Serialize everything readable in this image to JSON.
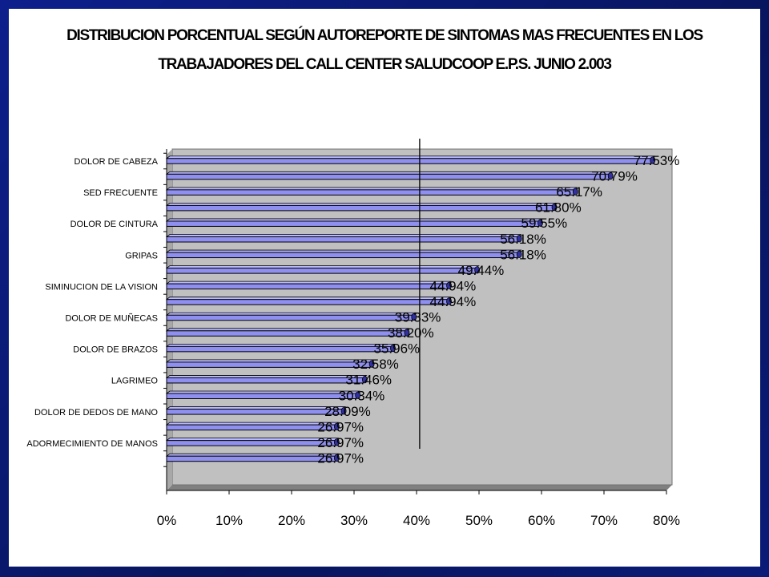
{
  "chart_data": {
    "type": "bar",
    "orientation": "horizontal",
    "title_line1": "DISTRIBUCION PORCENTUAL SEGÚN AUTOREPORTE DE SINTOMAS MAS FRECUENTES EN LOS",
    "title_line2": "TRABAJADORES DEL CALL CENTER SALUDCOOP E.P.S. JUNIO 2.003",
    "xlim": [
      0,
      80
    ],
    "x_ticks": [
      "0%",
      "10%",
      "20%",
      "30%",
      "40%",
      "50%",
      "60%",
      "70%",
      "80%"
    ],
    "category_labels": [
      "DOLOR DE CABEZA",
      "SED FRECUENTE",
      "DOLOR DE CINTURA",
      "GRIPAS",
      "SIMINUCION DE LA VISION",
      "DOLOR DE MUÑECAS",
      "DOLOR DE BRAZOS",
      "LAGRIMEO",
      "DOLOR DE DEDOS DE MANO",
      "ADORMECIMIENTO DE MANOS"
    ],
    "values": [
      77.53,
      70.79,
      65.17,
      61.8,
      59.55,
      56.18,
      56.18,
      49.44,
      44.94,
      44.94,
      39.33,
      38.2,
      35.96,
      32.58,
      31.46,
      30.34,
      28.09,
      26.97,
      26.97,
      26.97
    ],
    "data_labels": [
      "77.53%",
      "70.79%",
      "65.17%",
      "61.80%",
      "59.55%",
      "56.18%",
      "56.18%",
      "49.44%",
      "44.94%",
      "44.94%",
      "39.33%",
      "38.20%",
      "35.96%",
      "32.58%",
      "31.46%",
      "30.34%",
      "28.09%",
      "26.97%",
      "26.97%",
      "26.97%"
    ],
    "reference_line_x": 40.5,
    "colors": {
      "bar": "#8f8ff0",
      "bar_shadow": "#3030a0",
      "plot_back": "#c0c0c0",
      "frame": "#0d1f8c"
    },
    "grid": false,
    "legend": "none"
  }
}
